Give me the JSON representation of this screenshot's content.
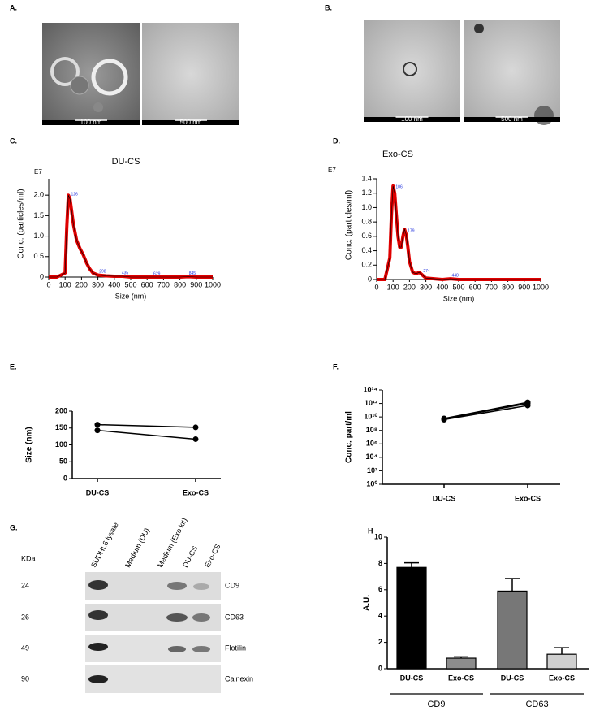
{
  "images": [
    {
      "panel": "A.",
      "scale_labels": [
        "100 nm",
        "500 nm"
      ]
    },
    {
      "panel": "B.",
      "scale_labels": [
        "100 nm",
        "500 nm"
      ]
    }
  ],
  "chart_data": [
    {
      "type": "line",
      "panel": "C.",
      "title": "DU-CS",
      "multiplier": "E7",
      "x_label": "Size (nm)",
      "y_label": "Conc. (particles/ml)",
      "x": [
        0,
        50,
        100,
        110,
        120,
        130,
        140,
        150,
        170,
        190,
        210,
        230,
        250,
        270,
        300,
        350,
        400,
        450,
        500,
        600,
        700,
        800,
        850,
        900,
        1000
      ],
      "series": [
        {
          "color": "#e00000",
          "values": [
            0,
            0,
            0.1,
            1.2,
            2.0,
            1.9,
            1.6,
            1.3,
            0.9,
            0.7,
            0.55,
            0.35,
            0.2,
            0.1,
            0.05,
            0.03,
            0.02,
            0.02,
            0,
            0,
            0,
            0,
            0.01,
            0,
            0
          ]
        }
      ],
      "peak_labels": [
        126,
        298,
        435,
        629,
        845
      ],
      "xlim": [
        0,
        1000
      ],
      "xticks": [
        0,
        100,
        200,
        300,
        400,
        500,
        600,
        700,
        800,
        900,
        1000
      ],
      "ylim": [
        0,
        2.4
      ],
      "yticks": [
        0,
        0.5,
        {
          "value": 1,
          "label": "1.0"
        },
        1.5,
        {
          "value": 2,
          "label": "2.0"
        }
      ]
    },
    {
      "type": "line",
      "panel": "D.",
      "title": "Exo-CS",
      "multiplier": "E7",
      "x_label": "Size (nm)",
      "y_label": "Conc. (particles/ml)",
      "x": [
        0,
        50,
        80,
        90,
        100,
        110,
        120,
        130,
        140,
        150,
        160,
        170,
        180,
        190,
        200,
        220,
        240,
        260,
        280,
        300,
        350,
        400,
        450,
        500,
        1000
      ],
      "series": [
        {
          "color": "#e00000",
          "values": [
            0,
            0,
            0.3,
            0.9,
            1.3,
            1.2,
            0.9,
            0.6,
            0.45,
            0.45,
            0.6,
            0.7,
            0.62,
            0.45,
            0.25,
            0.1,
            0.08,
            0.1,
            0.06,
            0.02,
            0.01,
            0,
            0.01,
            0,
            0
          ]
        }
      ],
      "peak_labels": [
        106,
        179,
        274,
        448
      ],
      "xlim": [
        0,
        1000
      ],
      "xticks": [
        0,
        100,
        200,
        300,
        400,
        500,
        600,
        700,
        800,
        900,
        1000
      ],
      "ylim": [
        0,
        1.4
      ],
      "yticks": [
        0,
        0.2,
        0.4,
        0.6,
        0.8,
        {
          "value": 1,
          "label": "1.0"
        },
        1.2,
        1.4
      ]
    },
    {
      "type": "paired",
      "panel": "E.",
      "y_label": "Size (nm)",
      "categories": [
        "DU-CS",
        "Exo-CS"
      ],
      "series": [
        {
          "color": "#000000",
          "values": [
            160,
            152
          ]
        },
        {
          "color": "#000000",
          "values": [
            143,
            117
          ]
        }
      ],
      "ylim": [
        0,
        200
      ],
      "yticks": [
        0,
        50,
        100,
        150,
        200
      ]
    },
    {
      "type": "paired",
      "panel": "F.",
      "y_label": "Conc. part/ml",
      "log_y": true,
      "categories": [
        "DU-CS",
        "Exo-CS"
      ],
      "series": [
        {
          "color": "#000000",
          "values": [
            5000000000,
            1000000000000
          ]
        },
        {
          "color": "#000000",
          "values": [
            4000000000,
            500000000000
          ]
        },
        {
          "color": "#000000",
          "values": [
            6000000000,
            1500000000000
          ]
        }
      ],
      "ylim": [
        1,
        100000000000000
      ],
      "yticks": [
        {
          "value": 1,
          "label": "10⁰"
        },
        {
          "value": 100,
          "label": "10²"
        },
        {
          "value": 10000,
          "label": "10⁴"
        },
        {
          "value": 1000000,
          "label": "10⁶"
        },
        {
          "value": 100000000,
          "label": "10⁸"
        },
        {
          "value": 10000000000,
          "label": "10¹⁰"
        },
        {
          "value": 1000000000000,
          "label": "10¹²"
        },
        {
          "value": 100000000000000,
          "label": "10¹⁴"
        }
      ]
    },
    {
      "type": "bar",
      "panel": "H",
      "y_label": "A.U.",
      "categories": [
        "DU-CS",
        "Exo-CS",
        "DU-CS",
        "Exo-CS"
      ],
      "values": [
        7.7,
        0.8,
        5.9,
        1.1
      ],
      "errors": [
        0.35,
        0.1,
        0.95,
        0.5
      ],
      "colors": [
        "#000000",
        "#8c8c8c",
        "#777777",
        "#cfcfcf"
      ],
      "group_labels": [
        "CD9",
        "CD63"
      ],
      "ylim": [
        0,
        10
      ],
      "yticks": [
        0,
        2,
        4,
        6,
        8,
        10
      ]
    }
  ],
  "blot": {
    "panel": "G.",
    "unit_label": "KDa",
    "lanes": [
      "SUDHL6 lysate",
      "Medium (DU)",
      "Medium (Exo kit)",
      "DU-CS",
      "Exo-CS"
    ],
    "rows": [
      {
        "kda": "24",
        "protein": "CD9"
      },
      {
        "kda": "26",
        "protein": "CD63"
      },
      {
        "kda": "49",
        "protein": "Flotilin"
      },
      {
        "kda": "90",
        "protein": "Calnexin"
      }
    ]
  }
}
